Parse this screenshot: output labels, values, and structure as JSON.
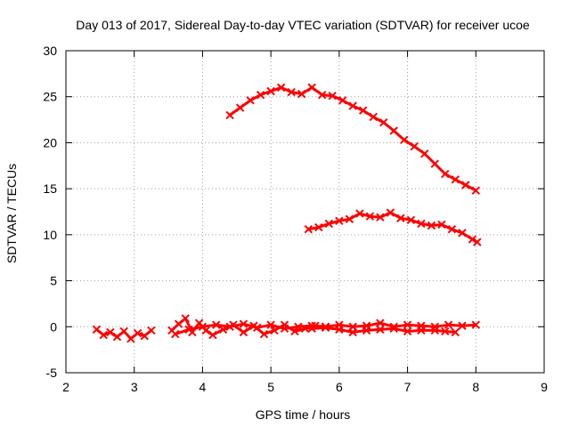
{
  "chart_data": {
    "type": "scatter",
    "title": "Day 013 of 2017, Sidereal Day-to-day VTEC variation (SDTVAR) for receiver ucoe",
    "xlabel": "GPS time / hours",
    "ylabel": "SDTVAR / TECUs",
    "xlim": [
      2,
      9
    ],
    "ylim": [
      -5,
      30
    ],
    "xticks": [
      "2",
      "3",
      "4",
      "5",
      "6",
      "7",
      "8",
      "9"
    ],
    "yticks": [
      "-5",
      "0",
      "5",
      "10",
      "15",
      "20",
      "25",
      "30"
    ],
    "grid": true,
    "legend": "none",
    "marker_color": "#ff0000",
    "series": [
      {
        "name": "arc-high",
        "x": [
          4.4,
          4.55,
          4.7,
          4.85,
          5.0,
          5.15,
          5.3,
          5.45,
          5.6,
          5.75,
          5.9,
          6.05,
          6.2,
          6.35,
          6.5,
          6.65,
          6.8,
          6.95,
          7.1,
          7.25,
          7.4,
          7.55,
          7.7,
          7.85,
          8.0
        ],
        "y": [
          23.0,
          23.8,
          24.6,
          25.2,
          25.6,
          26.0,
          25.5,
          25.3,
          26.0,
          25.2,
          25.1,
          24.6,
          24.0,
          23.5,
          22.8,
          22.2,
          21.3,
          20.3,
          19.6,
          18.8,
          17.7,
          16.6,
          16.0,
          15.4,
          14.8
        ]
      },
      {
        "name": "arc-mid",
        "x": [
          5.55,
          5.7,
          5.85,
          6.0,
          6.15,
          6.3,
          6.45,
          6.6,
          6.75,
          6.9,
          7.05,
          7.2,
          7.35,
          7.5,
          7.65,
          7.8,
          7.95,
          8.02
        ],
        "y": [
          10.6,
          10.8,
          11.2,
          11.5,
          11.7,
          12.3,
          12.0,
          11.9,
          12.4,
          11.8,
          11.6,
          11.2,
          11.0,
          11.1,
          10.6,
          10.2,
          9.5,
          9.2
        ]
      },
      {
        "name": "near-zero-1",
        "x": [
          2.45,
          2.55,
          2.65,
          2.75,
          2.85,
          2.95,
          3.05,
          3.15,
          3.25
        ],
        "y": [
          -0.3,
          -0.9,
          -0.6,
          -1.1,
          -0.5,
          -1.3,
          -0.7,
          -1.0,
          -0.4
        ]
      },
      {
        "name": "near-zero-2",
        "x": [
          3.55,
          3.65,
          3.75,
          3.85,
          3.95,
          4.05,
          4.15,
          4.3,
          4.45,
          4.6,
          4.75,
          4.9,
          5.05,
          5.2,
          5.35,
          5.5,
          5.65,
          5.8
        ],
        "y": [
          -0.4,
          0.3,
          0.9,
          -0.6,
          0.4,
          -0.4,
          -0.9,
          -0.3,
          0.2,
          -0.6,
          0.1,
          -0.8,
          -0.4,
          0.2,
          -0.5,
          -0.2,
          0.1,
          0.0
        ]
      },
      {
        "name": "near-zero-3",
        "x": [
          3.6,
          3.8,
          4.0,
          4.2,
          4.4,
          4.6,
          4.8,
          5.0,
          5.2,
          5.4,
          5.6,
          5.8,
          6.0,
          6.2,
          6.4,
          6.6,
          6.8,
          7.0,
          7.2,
          7.4,
          7.6,
          7.8,
          8.0
        ],
        "y": [
          -0.8,
          -0.3,
          0.0,
          0.2,
          0.0,
          0.3,
          -0.1,
          0.2,
          -0.2,
          0.0,
          0.1,
          0.0,
          0.2,
          0.0,
          0.1,
          0.4,
          0.0,
          0.2,
          0.1,
          0.0,
          0.2,
          0.1,
          0.2
        ]
      },
      {
        "name": "near-zero-4",
        "x": [
          5.6,
          5.8,
          6.0,
          6.2,
          6.4,
          6.6,
          6.8,
          7.0,
          7.2,
          7.4,
          7.55,
          7.7
        ],
        "y": [
          -0.2,
          -0.1,
          -0.3,
          -0.6,
          -0.4,
          -0.3,
          -0.2,
          -0.5,
          -0.4,
          -0.4,
          -0.5,
          -0.6
        ]
      }
    ]
  }
}
